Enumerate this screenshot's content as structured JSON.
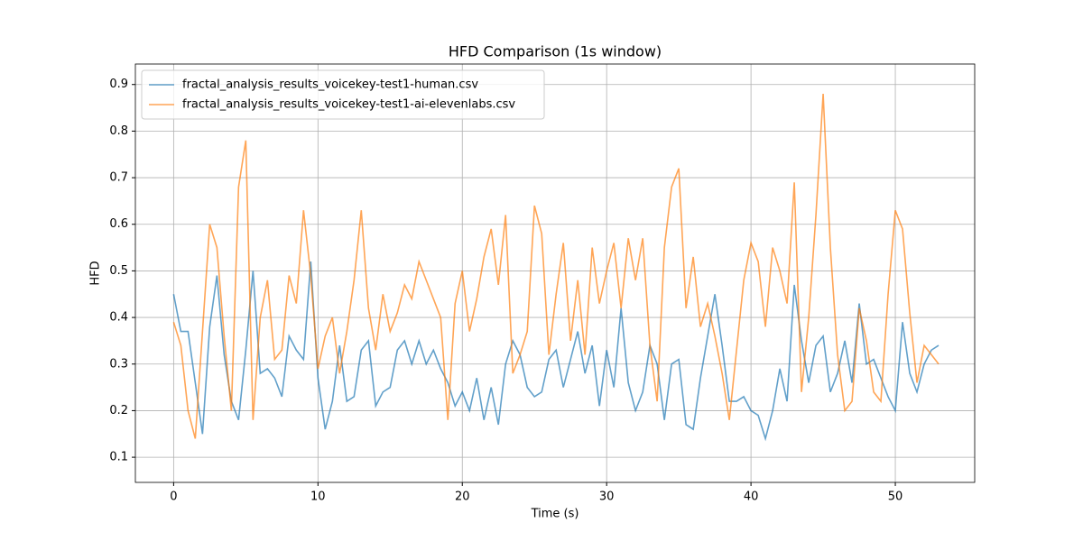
{
  "chart_data": {
    "type": "line",
    "title": "HFD Comparison (1s window)",
    "xlabel": "Time (s)",
    "ylabel": "HFD",
    "x": [
      0,
      0.5,
      1,
      1.5,
      2,
      2.5,
      3,
      3.5,
      4,
      4.5,
      5,
      5.5,
      6,
      6.5,
      7,
      7.5,
      8,
      8.5,
      9,
      9.5,
      10,
      10.5,
      11,
      11.5,
      12,
      12.5,
      13,
      13.5,
      14,
      14.5,
      15,
      15.5,
      16,
      16.5,
      17,
      17.5,
      18,
      18.5,
      19,
      19.5,
      20,
      20.5,
      21,
      21.5,
      22,
      22.5,
      23,
      23.5,
      24,
      24.5,
      25,
      25.5,
      26,
      26.5,
      27,
      27.5,
      28,
      28.5,
      29,
      29.5,
      30,
      30.5,
      31,
      31.5,
      32,
      32.5,
      33,
      33.5,
      34,
      34.5,
      35,
      35.5,
      36,
      36.5,
      37,
      37.5,
      38,
      38.5,
      39,
      39.5,
      40,
      40.5,
      41,
      41.5,
      42,
      42.5,
      43,
      43.5,
      44,
      44.5,
      45,
      45.5,
      46,
      46.5,
      47,
      47.5,
      48,
      48.5,
      49,
      49.5,
      50,
      50.5,
      51,
      51.5,
      52,
      52.5,
      53
    ],
    "series": [
      {
        "name": "fractal_analysis_results_voicekey-test1-human.csv",
        "color": "#1f77b4",
        "values": [
          0.45,
          0.37,
          0.37,
          0.26,
          0.15,
          0.38,
          0.49,
          0.32,
          0.22,
          0.18,
          0.33,
          0.5,
          0.28,
          0.29,
          0.27,
          0.23,
          0.36,
          0.33,
          0.31,
          0.52,
          0.27,
          0.16,
          0.22,
          0.34,
          0.22,
          0.23,
          0.33,
          0.35,
          0.21,
          0.24,
          0.25,
          0.33,
          0.35,
          0.3,
          0.35,
          0.3,
          0.33,
          0.29,
          0.26,
          0.21,
          0.24,
          0.2,
          0.27,
          0.18,
          0.25,
          0.17,
          0.3,
          0.35,
          0.32,
          0.25,
          0.23,
          0.24,
          0.31,
          0.33,
          0.25,
          0.31,
          0.37,
          0.28,
          0.34,
          0.21,
          0.33,
          0.25,
          0.42,
          0.26,
          0.2,
          0.24,
          0.34,
          0.3,
          0.18,
          0.3,
          0.31,
          0.17,
          0.16,
          0.27,
          0.36,
          0.45,
          0.34,
          0.22,
          0.22,
          0.23,
          0.2,
          0.19,
          0.14,
          0.2,
          0.29,
          0.22,
          0.47,
          0.35,
          0.26,
          0.34,
          0.36,
          0.24,
          0.28,
          0.35,
          0.26,
          0.43,
          0.3,
          0.31,
          0.27,
          0.23,
          0.2,
          0.39,
          0.28,
          0.24,
          0.3,
          0.33,
          0.34
        ]
      },
      {
        "name": "fractal_analysis_results_voicekey-test1-ai-elevenlabs.csv",
        "color": "#ff7f0e",
        "values": [
          0.39,
          0.34,
          0.2,
          0.14,
          0.37,
          0.6,
          0.55,
          0.36,
          0.2,
          0.68,
          0.78,
          0.18,
          0.4,
          0.48,
          0.31,
          0.33,
          0.49,
          0.43,
          0.63,
          0.49,
          0.29,
          0.36,
          0.4,
          0.28,
          0.37,
          0.48,
          0.63,
          0.42,
          0.33,
          0.45,
          0.37,
          0.41,
          0.47,
          0.44,
          0.52,
          0.48,
          0.44,
          0.4,
          0.18,
          0.43,
          0.5,
          0.37,
          0.44,
          0.53,
          0.59,
          0.47,
          0.62,
          0.28,
          0.32,
          0.37,
          0.64,
          0.58,
          0.32,
          0.45,
          0.56,
          0.35,
          0.48,
          0.32,
          0.55,
          0.43,
          0.5,
          0.56,
          0.42,
          0.57,
          0.48,
          0.57,
          0.34,
          0.22,
          0.55,
          0.68,
          0.72,
          0.42,
          0.53,
          0.38,
          0.43,
          0.36,
          0.28,
          0.18,
          0.33,
          0.48,
          0.56,
          0.52,
          0.38,
          0.55,
          0.5,
          0.43,
          0.69,
          0.24,
          0.4,
          0.62,
          0.88,
          0.55,
          0.32,
          0.2,
          0.22,
          0.42,
          0.35,
          0.24,
          0.22,
          0.45,
          0.63,
          0.59,
          0.41,
          0.26,
          0.34,
          0.32,
          0.3
        ]
      }
    ],
    "xlim": [
      -2.65,
      55.5
    ],
    "ylim": [
      0.046,
      0.944
    ],
    "xticks": [
      0,
      10,
      20,
      30,
      40,
      50
    ],
    "yticks": [
      0.1,
      0.2,
      0.3,
      0.4,
      0.5,
      0.6,
      0.7,
      0.8,
      0.9
    ],
    "grid": true,
    "legend": "upper-left"
  }
}
